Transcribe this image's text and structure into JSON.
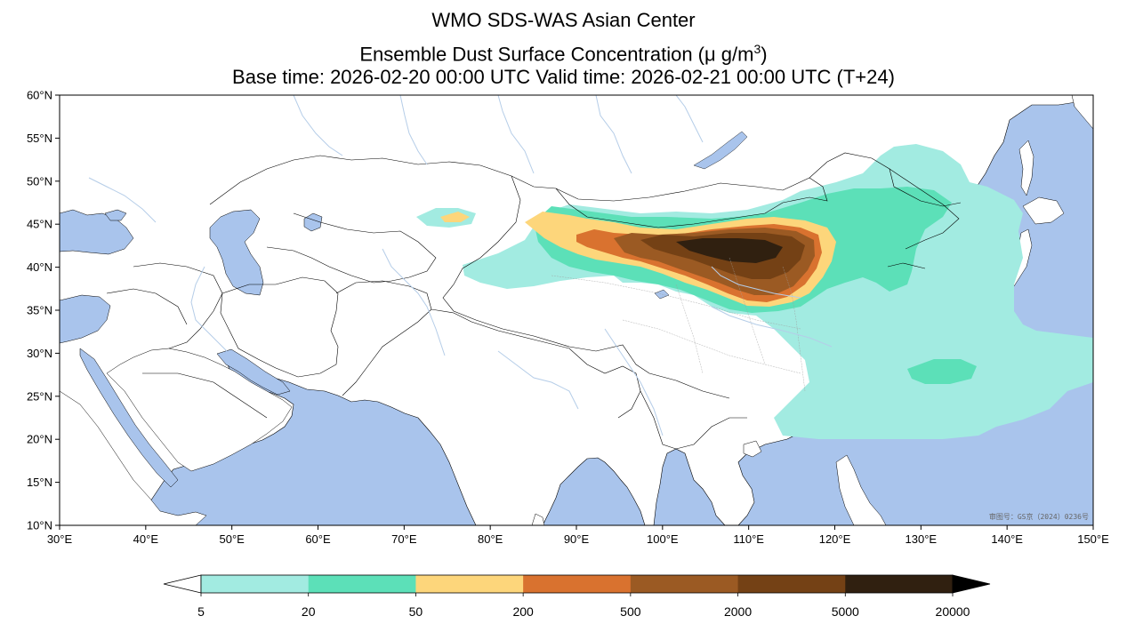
{
  "header": {
    "title": "WMO SDS-WAS Asian Center",
    "subtitle_prefix": "Ensemble Dust Surface Concentration (",
    "subtitle_unit_main": "μ g/m",
    "subtitle_unit_exp": "3",
    "subtitle_suffix": ")",
    "time_line": "Base time: 2026-02-20 00:00 UTC Valid time: 2026-02-21 00:00 UTC (T+24)"
  },
  "map": {
    "lon_range": [
      30,
      150
    ],
    "lat_range": [
      10,
      60
    ],
    "lon_ticks": [
      {
        "value": 30,
        "label": "30°E"
      },
      {
        "value": 40,
        "label": "40°E"
      },
      {
        "value": 50,
        "label": "50°E"
      },
      {
        "value": 60,
        "label": "60°E"
      },
      {
        "value": 70,
        "label": "70°E"
      },
      {
        "value": 80,
        "label": "80°E"
      },
      {
        "value": 90,
        "label": "90°E"
      },
      {
        "value": 100,
        "label": "100°E"
      },
      {
        "value": 110,
        "label": "110°E"
      },
      {
        "value": 120,
        "label": "120°E"
      },
      {
        "value": 130,
        "label": "130°E"
      },
      {
        "value": 140,
        "label": "140°E"
      },
      {
        "value": 150,
        "label": "150°E"
      }
    ],
    "lat_ticks": [
      {
        "value": 60,
        "label": "60°N"
      },
      {
        "value": 55,
        "label": "55°N"
      },
      {
        "value": 50,
        "label": "50°N"
      },
      {
        "value": 45,
        "label": "45°N"
      },
      {
        "value": 40,
        "label": "40°N"
      },
      {
        "value": 35,
        "label": "35°N"
      },
      {
        "value": 30,
        "label": "30°N"
      },
      {
        "value": 25,
        "label": "25°N"
      },
      {
        "value": 20,
        "label": "20°N"
      },
      {
        "value": 15,
        "label": "15°N"
      },
      {
        "value": 10,
        "label": "10°N"
      }
    ],
    "watermark": "审图号：GS京（2024）0236号",
    "colors": {
      "ocean": "#a9c4ec",
      "land": "#ffffff",
      "river": "#b5cde8",
      "border": "#000000"
    }
  },
  "colorbar": {
    "bounds": [
      5,
      20,
      50,
      200,
      500,
      2000,
      5000,
      20000
    ],
    "labels": [
      "5",
      "20",
      "50",
      "200",
      "500",
      "2000",
      "5000",
      "20000"
    ],
    "colors": [
      "#a2ebe1",
      "#5ce0b8",
      "#fdd67b",
      "#d9722f",
      "#9b5a23",
      "#744115",
      "#302010"
    ],
    "under_color": "#ffffff",
    "over_color": "#000000"
  }
}
